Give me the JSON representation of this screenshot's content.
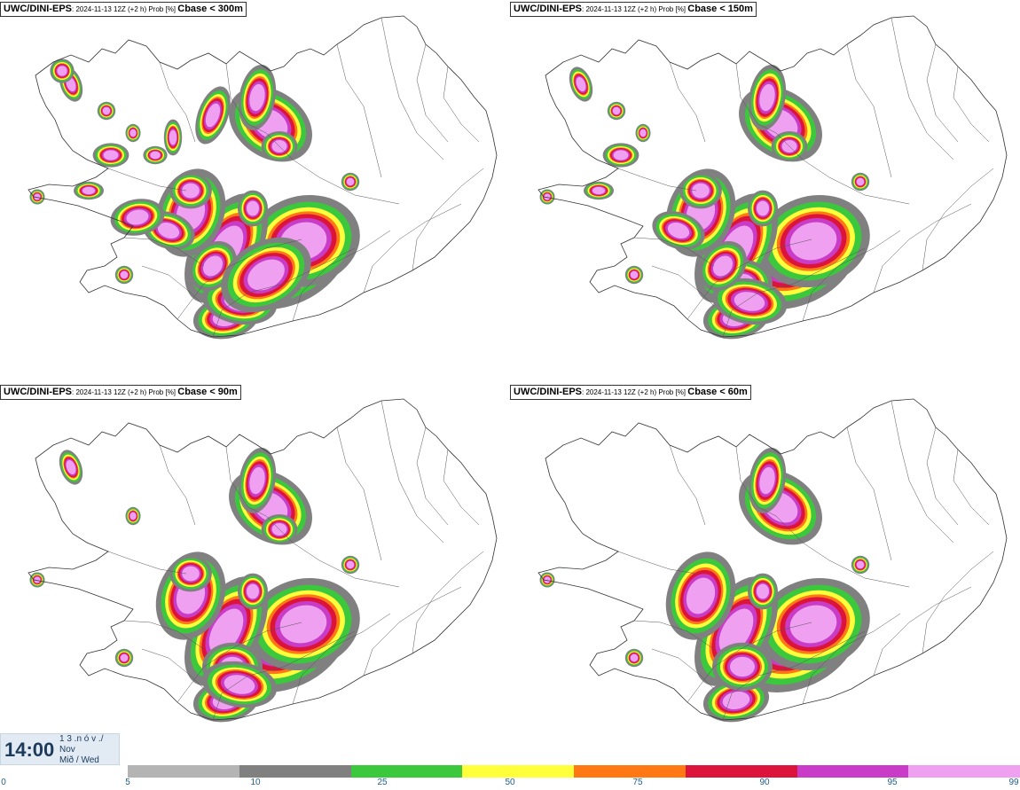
{
  "panels": [
    {
      "source": "UWC/DINI-EPS",
      "meta": ": 2024-11-13 12Z (+2 h) Prob [%] ",
      "variable": "Cbase < 300m",
      "level": 4
    },
    {
      "source": "UWC/DINI-EPS",
      "meta": ": 2024-11-13 12Z (+2 h) Prob [%] ",
      "variable": "Cbase < 150m",
      "level": 3
    },
    {
      "source": "UWC/DINI-EPS",
      "meta": ": 2024-11-13 12Z (+2 h) Prob [%] ",
      "variable": "Cbase < 90m",
      "level": 2
    },
    {
      "source": "UWC/DINI-EPS",
      "meta": ": 2024-11-13 12Z (+2 h) Prob [%] ",
      "variable": "Cbase < 60m",
      "level": 1
    }
  ],
  "time": {
    "clock": "14:00",
    "line1": "1 3 .n ó v ./",
    "line2": "Nov",
    "line3": "Mið / Wed"
  },
  "legend": {
    "labels": [
      "0",
      "5",
      "10",
      "25",
      "50",
      "75",
      "90",
      "95",
      "99"
    ],
    "colors": [
      "#b4b4b4",
      "#808080",
      "#3cc83c",
      "#ffff3c",
      "#ff7814",
      "#dc143c",
      "#c83cc8",
      "#f0a0f0"
    ]
  }
}
